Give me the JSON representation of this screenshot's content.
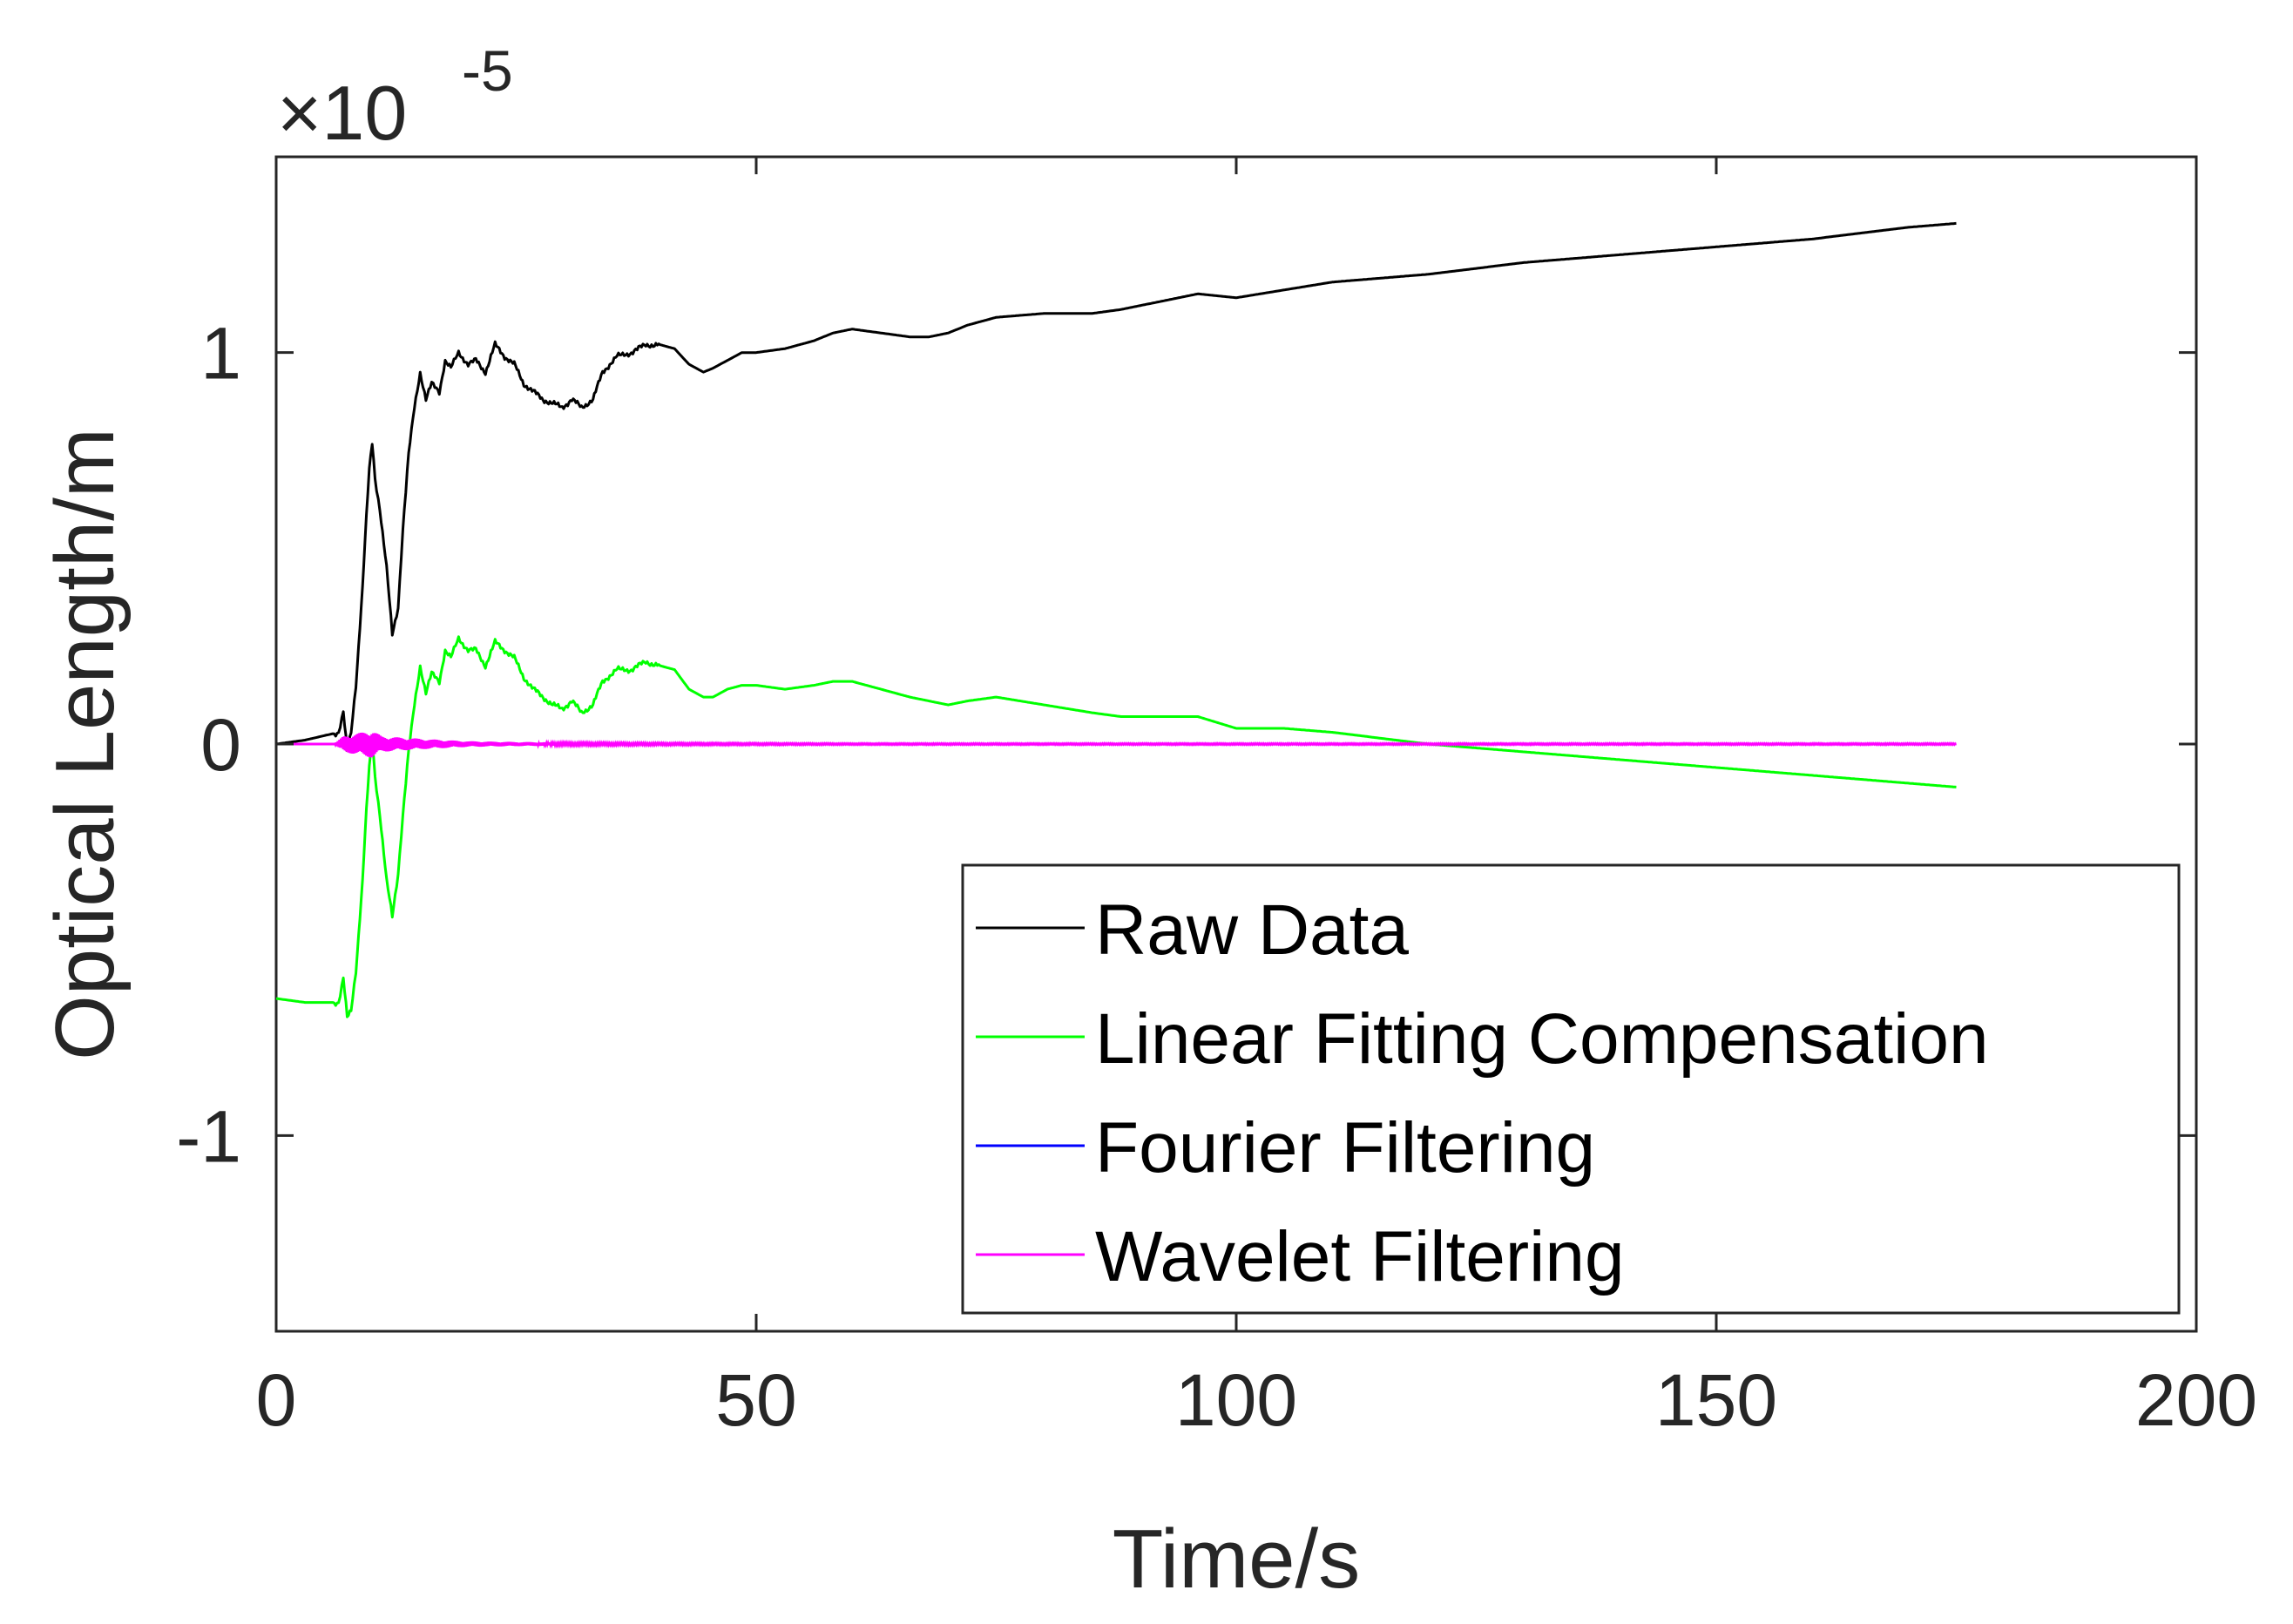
{
  "chart_data": {
    "type": "line",
    "title": "",
    "xlabel": "Time/s",
    "ylabel": "Optical Length/m",
    "xlim": [
      0,
      200
    ],
    "ylim": [
      -1.5,
      1.5
    ],
    "y_scale_multiplier": "×10",
    "y_scale_exponent": "-5",
    "xticks": [
      0,
      50,
      100,
      150,
      200
    ],
    "xtick_labels": [
      "0",
      "50",
      "100",
      "150",
      "200"
    ],
    "yticks": [
      -1,
      0,
      1
    ],
    "ytick_labels": [
      "-1",
      "0",
      "1"
    ],
    "grid": false,
    "legend_position": "bottom-right",
    "series": [
      {
        "name": "Raw Data",
        "color": "#000000",
        "x": [
          0,
          3,
          6.5,
          7,
          7.4,
          7.8,
          8.3,
          9,
          9.4,
          9.7,
          10,
          10.3,
          10.8,
          11.5,
          12.1,
          12.7,
          13.2,
          13.8,
          14.4,
          15,
          15.6,
          16.2,
          17,
          17.6,
          18.2,
          19,
          20,
          20.8,
          21.8,
          22.8,
          23.8,
          24.8,
          25.8,
          26.8,
          27.8,
          28.8,
          29.8,
          30.8,
          31.8,
          33,
          34,
          35.5,
          37,
          38.5,
          40,
          41.5,
          43,
          44.5,
          45.5,
          47,
          48.5,
          50,
          53,
          56,
          58,
          60,
          63,
          66,
          68,
          70,
          72,
          75,
          80,
          85,
          88,
          92,
          96,
          100,
          105,
          110,
          120,
          130,
          140,
          150,
          160,
          170,
          175
        ],
        "values": [
          0.0,
          0.01,
          0.03,
          0.08,
          -0.02,
          0.03,
          0.15,
          0.4,
          0.58,
          0.7,
          0.77,
          0.68,
          0.6,
          0.45,
          0.28,
          0.35,
          0.55,
          0.74,
          0.86,
          0.95,
          0.88,
          0.92,
          0.9,
          0.98,
          0.96,
          1.0,
          0.97,
          0.98,
          0.95,
          1.02,
          0.99,
          0.97,
          0.92,
          0.9,
          0.88,
          0.87,
          0.86,
          0.88,
          0.86,
          0.88,
          0.95,
          0.99,
          1.0,
          1.02,
          1.02,
          1.01,
          0.97,
          0.95,
          0.96,
          0.98,
          1.0,
          1.0,
          1.01,
          1.03,
          1.05,
          1.06,
          1.05,
          1.04,
          1.04,
          1.05,
          1.07,
          1.09,
          1.1,
          1.1,
          1.11,
          1.13,
          1.15,
          1.14,
          1.16,
          1.18,
          1.2,
          1.23,
          1.25,
          1.27,
          1.29,
          1.32,
          1.33
        ]
      },
      {
        "name": "Linear Fitting Compensation",
        "color": "#00ff00",
        "x": [
          0,
          3,
          6.5,
          7,
          7.4,
          7.8,
          8.3,
          9,
          9.4,
          9.7,
          10,
          10.3,
          10.8,
          11.5,
          12.1,
          12.7,
          13.2,
          13.8,
          14.4,
          15,
          15.6,
          16.2,
          17,
          17.6,
          18.2,
          19,
          20,
          20.8,
          21.8,
          22.8,
          23.8,
          24.8,
          25.8,
          26.8,
          27.8,
          28.8,
          29.8,
          30.8,
          31.8,
          33,
          34,
          35.5,
          37,
          38.5,
          40,
          41.5,
          43,
          44.5,
          45.5,
          47,
          48.5,
          50,
          53,
          56,
          58,
          60,
          63,
          66,
          68,
          70,
          72,
          75,
          80,
          85,
          88,
          92,
          96,
          100,
          105,
          110,
          120,
          130,
          140,
          150,
          160,
          170,
          175
        ],
        "values": [
          -0.65,
          -0.66,
          -0.66,
          -0.6,
          -0.7,
          -0.68,
          -0.58,
          -0.35,
          -0.17,
          -0.06,
          0.01,
          -0.08,
          -0.18,
          -0.35,
          -0.44,
          -0.33,
          -0.18,
          -0.02,
          0.1,
          0.2,
          0.13,
          0.18,
          0.16,
          0.24,
          0.22,
          0.27,
          0.24,
          0.24,
          0.2,
          0.26,
          0.24,
          0.22,
          0.17,
          0.14,
          0.12,
          0.1,
          0.09,
          0.11,
          0.08,
          0.1,
          0.16,
          0.19,
          0.19,
          0.21,
          0.2,
          0.19,
          0.14,
          0.12,
          0.12,
          0.14,
          0.15,
          0.15,
          0.14,
          0.15,
          0.16,
          0.16,
          0.14,
          0.12,
          0.11,
          0.1,
          0.11,
          0.12,
          0.1,
          0.08,
          0.07,
          0.07,
          0.07,
          0.04,
          0.04,
          0.03,
          0.0,
          -0.02,
          -0.04,
          -0.06,
          -0.08,
          -0.1,
          -0.11
        ]
      },
      {
        "name": "Fourier Filtering",
        "color": "#0000ff",
        "x": [
          0,
          175
        ],
        "values": [
          0.0,
          0.0
        ]
      },
      {
        "name": "Wavelet Filtering",
        "color": "#ff00ff",
        "x": [
          0,
          175
        ],
        "values": [
          0.0,
          0.0
        ],
        "noise_envelope": {
          "x": [
            0,
            6,
            7,
            8,
            9,
            10,
            11,
            12,
            14,
            16,
            20,
            25,
            30,
            40,
            60,
            100,
            175
          ],
          "amplitude": [
            0.0,
            0.0,
            0.02,
            0.025,
            0.03,
            0.035,
            0.02,
            0.018,
            0.015,
            0.012,
            0.007,
            0.005,
            0.004,
            0.003,
            0.002,
            0.002,
            0.002
          ]
        }
      }
    ]
  }
}
